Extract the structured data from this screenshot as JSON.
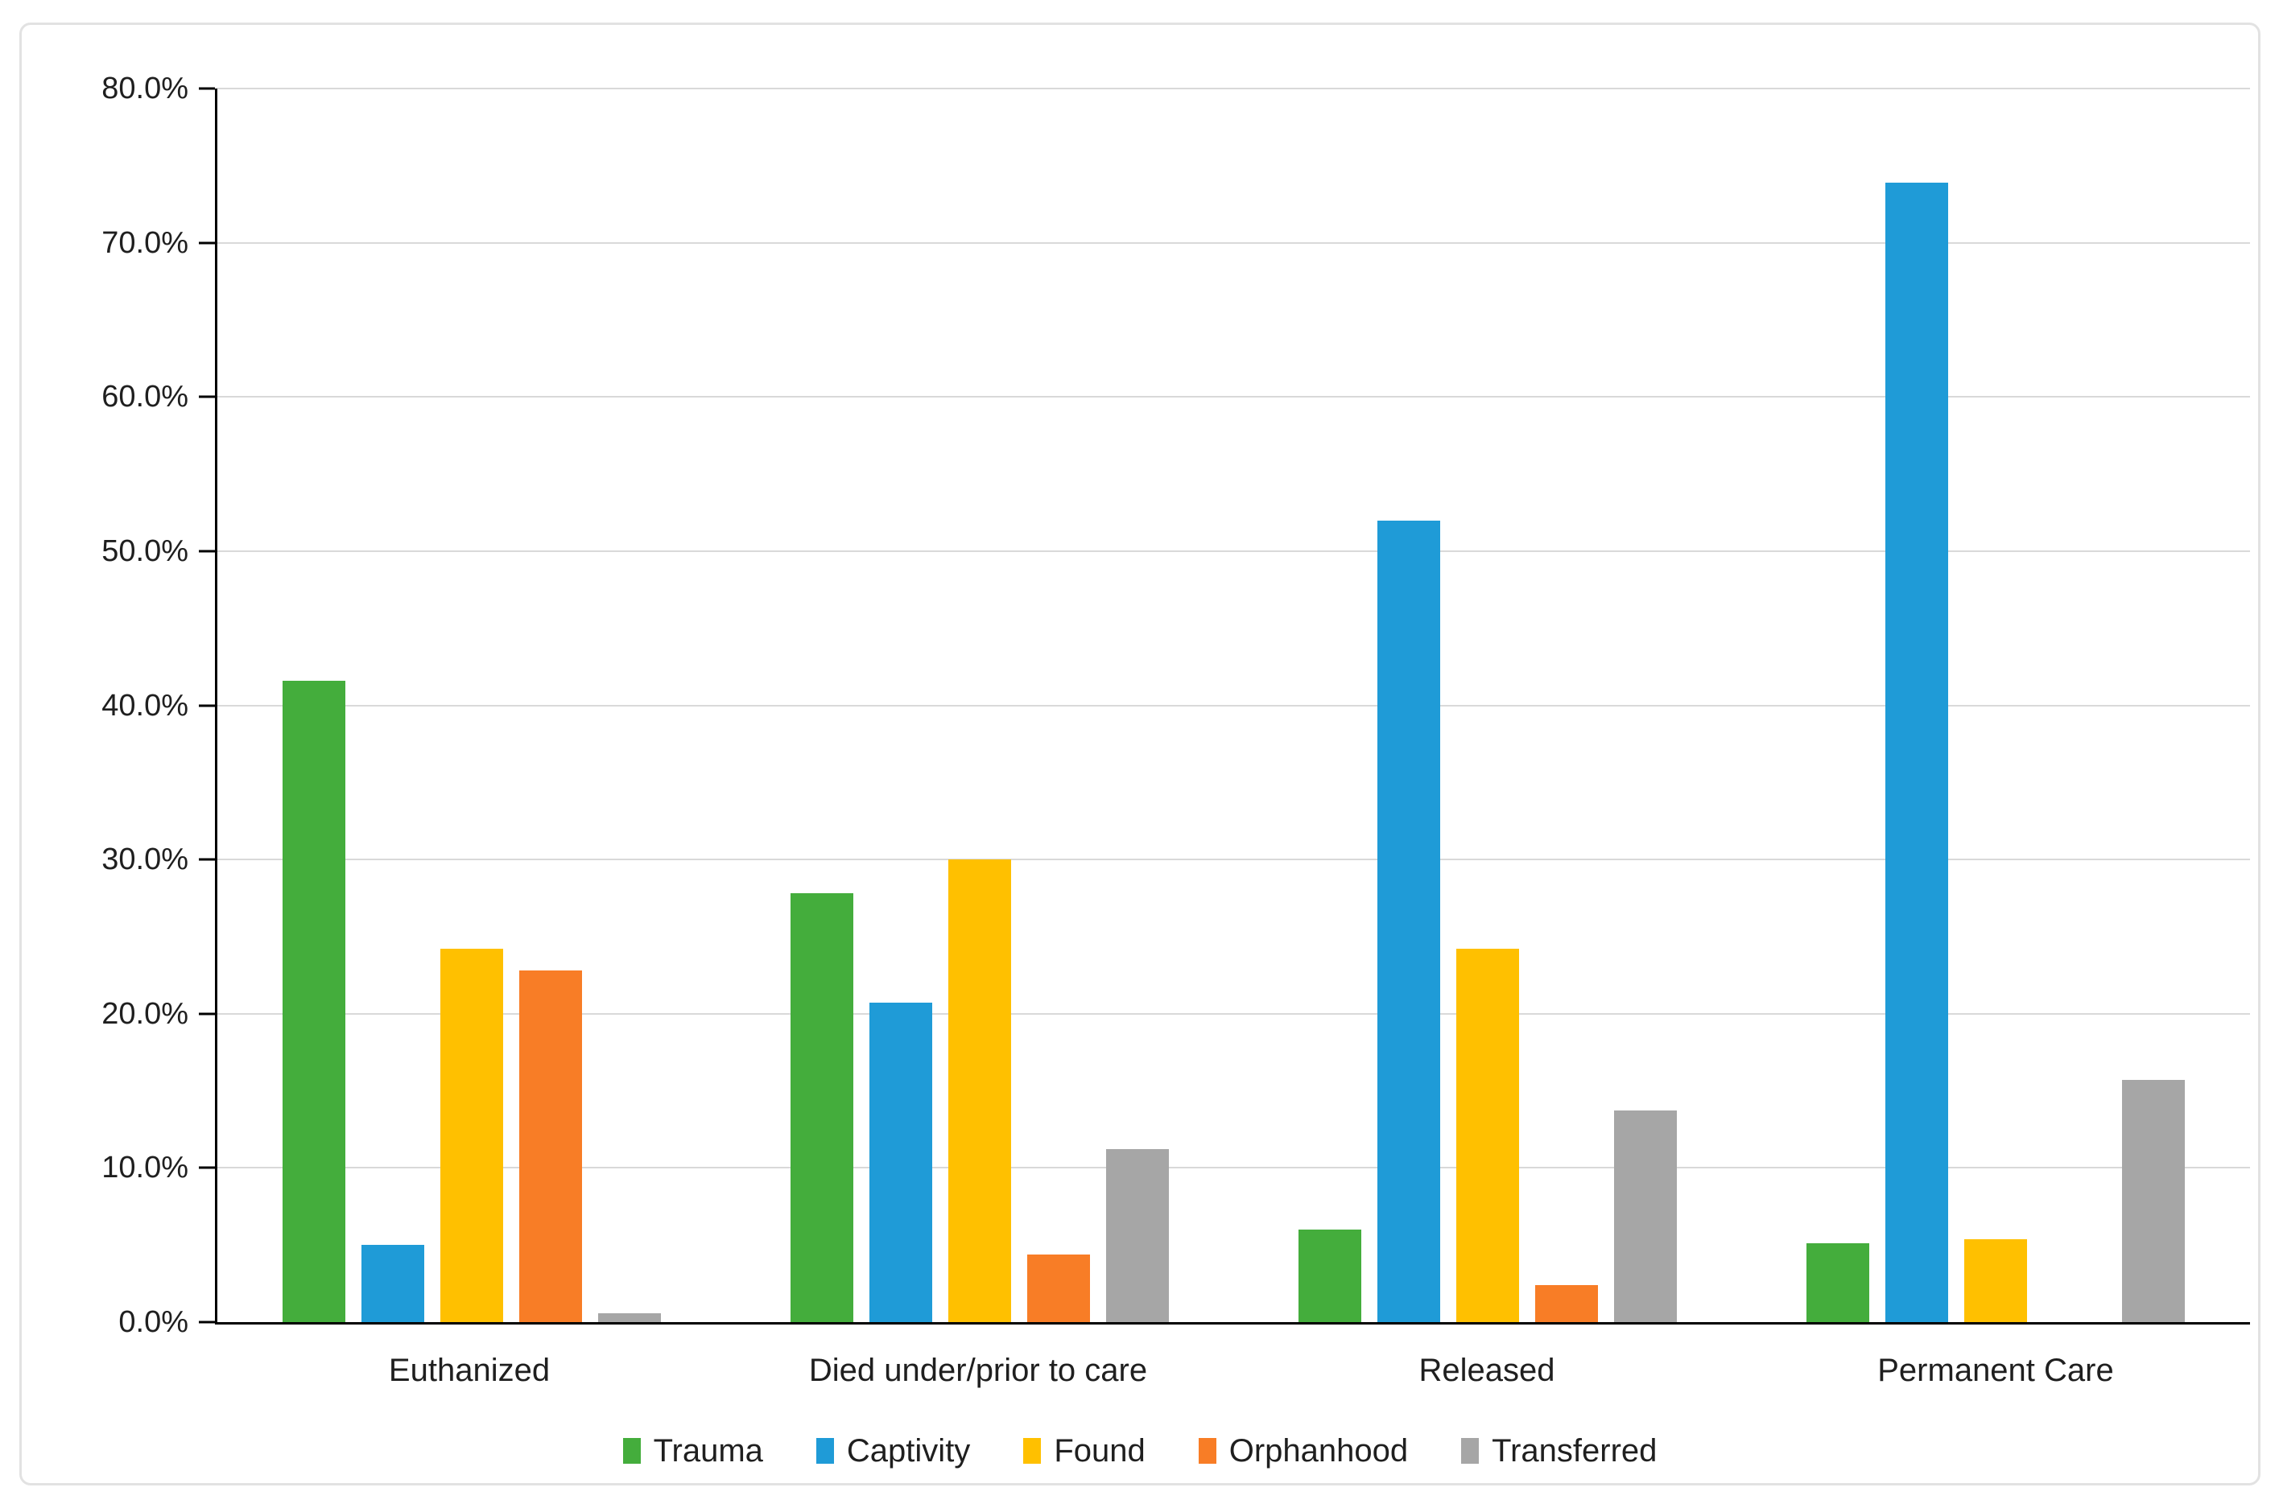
{
  "chart_data": {
    "type": "bar",
    "title": "",
    "xlabel": "",
    "ylabel": "",
    "categories": [
      "Euthanized",
      "Died under/prior to care",
      "Released",
      "Permanent Care"
    ],
    "series": [
      {
        "name": "Trauma",
        "color": "#44ad3c",
        "values": [
          41.6,
          27.8,
          6.0,
          5.1
        ]
      },
      {
        "name": "Captivity",
        "color": "#1f9bd7",
        "values": [
          5.0,
          20.7,
          52.0,
          73.9
        ]
      },
      {
        "name": "Found",
        "color": "#ffc000",
        "values": [
          24.2,
          30.0,
          24.2,
          5.4
        ]
      },
      {
        "name": "Orphanhood",
        "color": "#f87d26",
        "values": [
          22.8,
          4.4,
          2.4,
          0.0
        ]
      },
      {
        "name": "Transferred",
        "color": "#a6a6a6",
        "values": [
          0.6,
          11.2,
          13.7,
          15.7
        ]
      }
    ],
    "ylim": [
      0,
      80
    ],
    "ytick_step": 10,
    "ytick_labels": [
      "0.0%",
      "10.0%",
      "20.0%",
      "30.0%",
      "40.0%",
      "50.0%",
      "60.0%",
      "70.0%",
      "80.0%"
    ],
    "grid": true,
    "legend_position": "bottom-center",
    "colors": {
      "gridline": "#d9d9d9",
      "axis": "#000000",
      "text": "#1f1f1f",
      "frame_border": "#e2e2e2",
      "background": "#ffffff"
    }
  }
}
